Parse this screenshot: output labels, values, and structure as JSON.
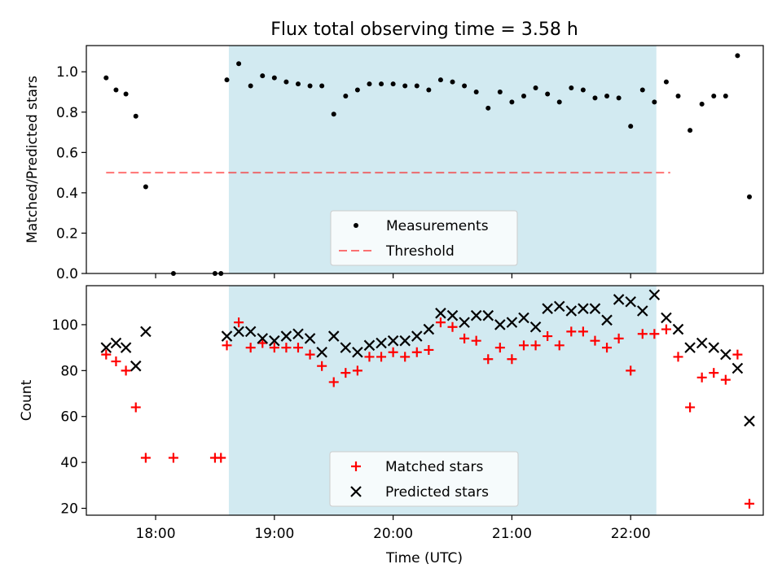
{
  "title": "Flux total observing time = 3.58 h",
  "colors": {
    "shade": "#add8e6",
    "threshold": "#ff0000",
    "measurement": "#000000",
    "matched": "#ff0000",
    "predicted": "#000000"
  },
  "chart_data": [
    {
      "type": "scatter",
      "ylabel": "Matched/Predicted stars",
      "ylim": [
        0,
        1.13
      ],
      "yticks": [
        "0.0",
        "0.2",
        "0.4",
        "0.6",
        "0.8",
        "1.0"
      ],
      "shaded_time_range": [
        "18:37",
        "22:13"
      ],
      "legend": {
        "placement": "lower center",
        "items": [
          "Measurements",
          "Threshold"
        ]
      },
      "threshold": {
        "name": "Threshold",
        "value": 0.5,
        "x_range": [
          "17:35",
          "22:20"
        ]
      },
      "series": [
        {
          "name": "Measurements",
          "marker": "dot",
          "points": [
            [
              "17:35",
              0.97
            ],
            [
              "17:40",
              0.91
            ],
            [
              "17:45",
              0.89
            ],
            [
              "17:50",
              0.78
            ],
            [
              "17:55",
              0.43
            ],
            [
              "18:09",
              0.0
            ],
            [
              "18:30",
              0.0
            ],
            [
              "18:33",
              0.0
            ],
            [
              "18:36",
              0.96
            ],
            [
              "18:42",
              1.04
            ],
            [
              "18:48",
              0.93
            ],
            [
              "18:54",
              0.98
            ],
            [
              "19:00",
              0.97
            ],
            [
              "19:06",
              0.95
            ],
            [
              "19:12",
              0.94
            ],
            [
              "19:18",
              0.93
            ],
            [
              "19:24",
              0.93
            ],
            [
              "19:30",
              0.79
            ],
            [
              "19:36",
              0.88
            ],
            [
              "19:42",
              0.91
            ],
            [
              "19:48",
              0.94
            ],
            [
              "19:54",
              0.94
            ],
            [
              "20:00",
              0.94
            ],
            [
              "20:06",
              0.93
            ],
            [
              "20:12",
              0.93
            ],
            [
              "20:18",
              0.91
            ],
            [
              "20:24",
              0.96
            ],
            [
              "20:30",
              0.95
            ],
            [
              "20:36",
              0.93
            ],
            [
              "20:42",
              0.9
            ],
            [
              "20:48",
              0.82
            ],
            [
              "20:54",
              0.9
            ],
            [
              "21:00",
              0.85
            ],
            [
              "21:06",
              0.88
            ],
            [
              "21:12",
              0.92
            ],
            [
              "21:18",
              0.89
            ],
            [
              "21:24",
              0.85
            ],
            [
              "21:30",
              0.92
            ],
            [
              "21:36",
              0.91
            ],
            [
              "21:42",
              0.87
            ],
            [
              "21:48",
              0.88
            ],
            [
              "21:54",
              0.87
            ],
            [
              "22:00",
              0.73
            ],
            [
              "22:06",
              0.91
            ],
            [
              "22:12",
              0.85
            ],
            [
              "22:18",
              0.95
            ],
            [
              "22:24",
              0.88
            ],
            [
              "22:30",
              0.71
            ],
            [
              "22:36",
              0.84
            ],
            [
              "22:42",
              0.88
            ],
            [
              "22:48",
              0.88
            ],
            [
              "22:54",
              1.08
            ],
            [
              "23:00",
              0.38
            ]
          ]
        }
      ]
    },
    {
      "type": "scatter",
      "xlabel": "Time (UTC)",
      "ylabel": "Count",
      "ylim": [
        17,
        117
      ],
      "yticks": [
        "20",
        "40",
        "60",
        "80",
        "100"
      ],
      "xticks": [
        "18:00",
        "19:00",
        "20:00",
        "21:00",
        "22:00"
      ],
      "shaded_time_range": [
        "18:37",
        "22:13"
      ],
      "legend": {
        "placement": "lower center",
        "items": [
          "Matched stars",
          "Predicted stars"
        ]
      },
      "series": [
        {
          "name": "Matched stars",
          "marker": "plus",
          "points": [
            [
              "17:35",
              87
            ],
            [
              "17:40",
              84
            ],
            [
              "17:45",
              80
            ],
            [
              "17:50",
              64
            ],
            [
              "17:55",
              42
            ],
            [
              "18:09",
              42
            ],
            [
              "18:30",
              42
            ],
            [
              "18:33",
              42
            ],
            [
              "18:36",
              91
            ],
            [
              "18:42",
              101
            ],
            [
              "18:48",
              90
            ],
            [
              "18:54",
              92
            ],
            [
              "19:00",
              90
            ],
            [
              "19:06",
              90
            ],
            [
              "19:12",
              90
            ],
            [
              "19:18",
              87
            ],
            [
              "19:24",
              82
            ],
            [
              "19:30",
              75
            ],
            [
              "19:36",
              79
            ],
            [
              "19:42",
              80
            ],
            [
              "19:48",
              86
            ],
            [
              "19:54",
              86
            ],
            [
              "20:00",
              88
            ],
            [
              "20:06",
              86
            ],
            [
              "20:12",
              88
            ],
            [
              "20:18",
              89
            ],
            [
              "20:24",
              101
            ],
            [
              "20:30",
              99
            ],
            [
              "20:36",
              94
            ],
            [
              "20:42",
              93
            ],
            [
              "20:48",
              85
            ],
            [
              "20:54",
              90
            ],
            [
              "21:00",
              85
            ],
            [
              "21:06",
              91
            ],
            [
              "21:12",
              91
            ],
            [
              "21:18",
              95
            ],
            [
              "21:24",
              91
            ],
            [
              "21:30",
              97
            ],
            [
              "21:36",
              97
            ],
            [
              "21:42",
              93
            ],
            [
              "21:48",
              90
            ],
            [
              "21:54",
              94
            ],
            [
              "22:00",
              80
            ],
            [
              "22:06",
              96
            ],
            [
              "22:12",
              96
            ],
            [
              "22:18",
              98
            ],
            [
              "22:24",
              86
            ],
            [
              "22:30",
              64
            ],
            [
              "22:36",
              77
            ],
            [
              "22:42",
              79
            ],
            [
              "22:48",
              76
            ],
            [
              "22:54",
              87
            ],
            [
              "23:00",
              22
            ]
          ]
        },
        {
          "name": "Predicted stars",
          "marker": "x",
          "points": [
            [
              "17:35",
              90
            ],
            [
              "17:40",
              92
            ],
            [
              "17:45",
              90
            ],
            [
              "17:50",
              82
            ],
            [
              "17:55",
              97
            ],
            [
              "18:36",
              95
            ],
            [
              "18:42",
              97
            ],
            [
              "18:48",
              97
            ],
            [
              "18:54",
              94
            ],
            [
              "19:00",
              93
            ],
            [
              "19:06",
              95
            ],
            [
              "19:12",
              96
            ],
            [
              "19:18",
              94
            ],
            [
              "19:24",
              88
            ],
            [
              "19:30",
              95
            ],
            [
              "19:36",
              90
            ],
            [
              "19:42",
              88
            ],
            [
              "19:48",
              91
            ],
            [
              "19:54",
              92
            ],
            [
              "20:00",
              93
            ],
            [
              "20:06",
              93
            ],
            [
              "20:12",
              95
            ],
            [
              "20:18",
              98
            ],
            [
              "20:24",
              105
            ],
            [
              "20:30",
              104
            ],
            [
              "20:36",
              101
            ],
            [
              "20:42",
              104
            ],
            [
              "20:48",
              104
            ],
            [
              "20:54",
              100
            ],
            [
              "21:00",
              101
            ],
            [
              "21:06",
              103
            ],
            [
              "21:12",
              99
            ],
            [
              "21:18",
              107
            ],
            [
              "21:24",
              108
            ],
            [
              "21:30",
              106
            ],
            [
              "21:36",
              107
            ],
            [
              "21:42",
              107
            ],
            [
              "21:48",
              102
            ],
            [
              "21:54",
              111
            ],
            [
              "22:00",
              110
            ],
            [
              "22:06",
              106
            ],
            [
              "22:12",
              113
            ],
            [
              "22:18",
              103
            ],
            [
              "22:24",
              98
            ],
            [
              "22:30",
              90
            ],
            [
              "22:36",
              92
            ],
            [
              "22:42",
              90
            ],
            [
              "22:48",
              87
            ],
            [
              "22:54",
              81
            ],
            [
              "23:00",
              58
            ]
          ]
        }
      ]
    }
  ]
}
